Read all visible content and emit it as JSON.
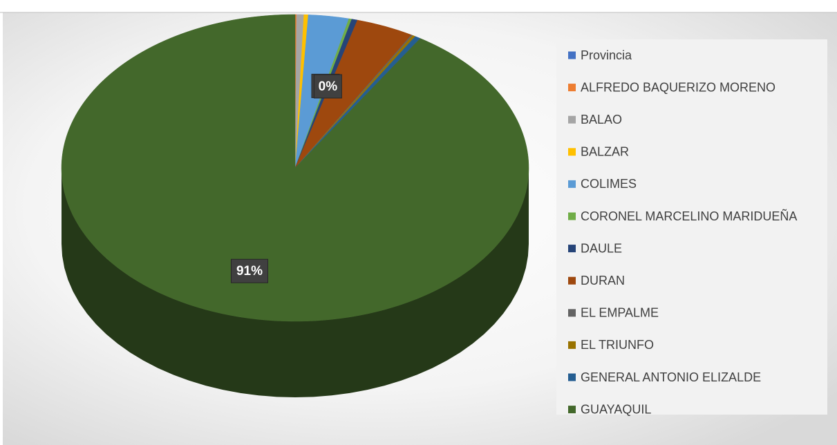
{
  "chart_data": {
    "type": "pie3d",
    "categories": [
      "Provincia",
      "ALFREDO BAQUERIZO MORENO",
      "BALAO",
      "BALZAR",
      "COLIMES",
      "CORONEL MARCELINO MARIDUEÑA",
      "DAULE",
      "DURAN",
      "EL EMPALME",
      "EL TRIUNFO",
      "GENERAL ANTONIO ELIZALDE",
      "GUAYAQUIL"
    ],
    "values": [
      0,
      0.1,
      0.5,
      0.3,
      2.8,
      0.2,
      0.4,
      4.0,
      0.1,
      0.2,
      0.4,
      91
    ],
    "value_labels": [
      null,
      null,
      null,
      null,
      null,
      "0%",
      "0%",
      null,
      null,
      null,
      null,
      "91%"
    ],
    "colors": [
      "#4472c4",
      "#ed7d31",
      "#a5a5a5",
      "#ffc000",
      "#5b9bd5",
      "#70ad47",
      "#264478",
      "#9e480e",
      "#636363",
      "#997300",
      "#255e91",
      "#43682b"
    ],
    "legend": "right"
  }
}
